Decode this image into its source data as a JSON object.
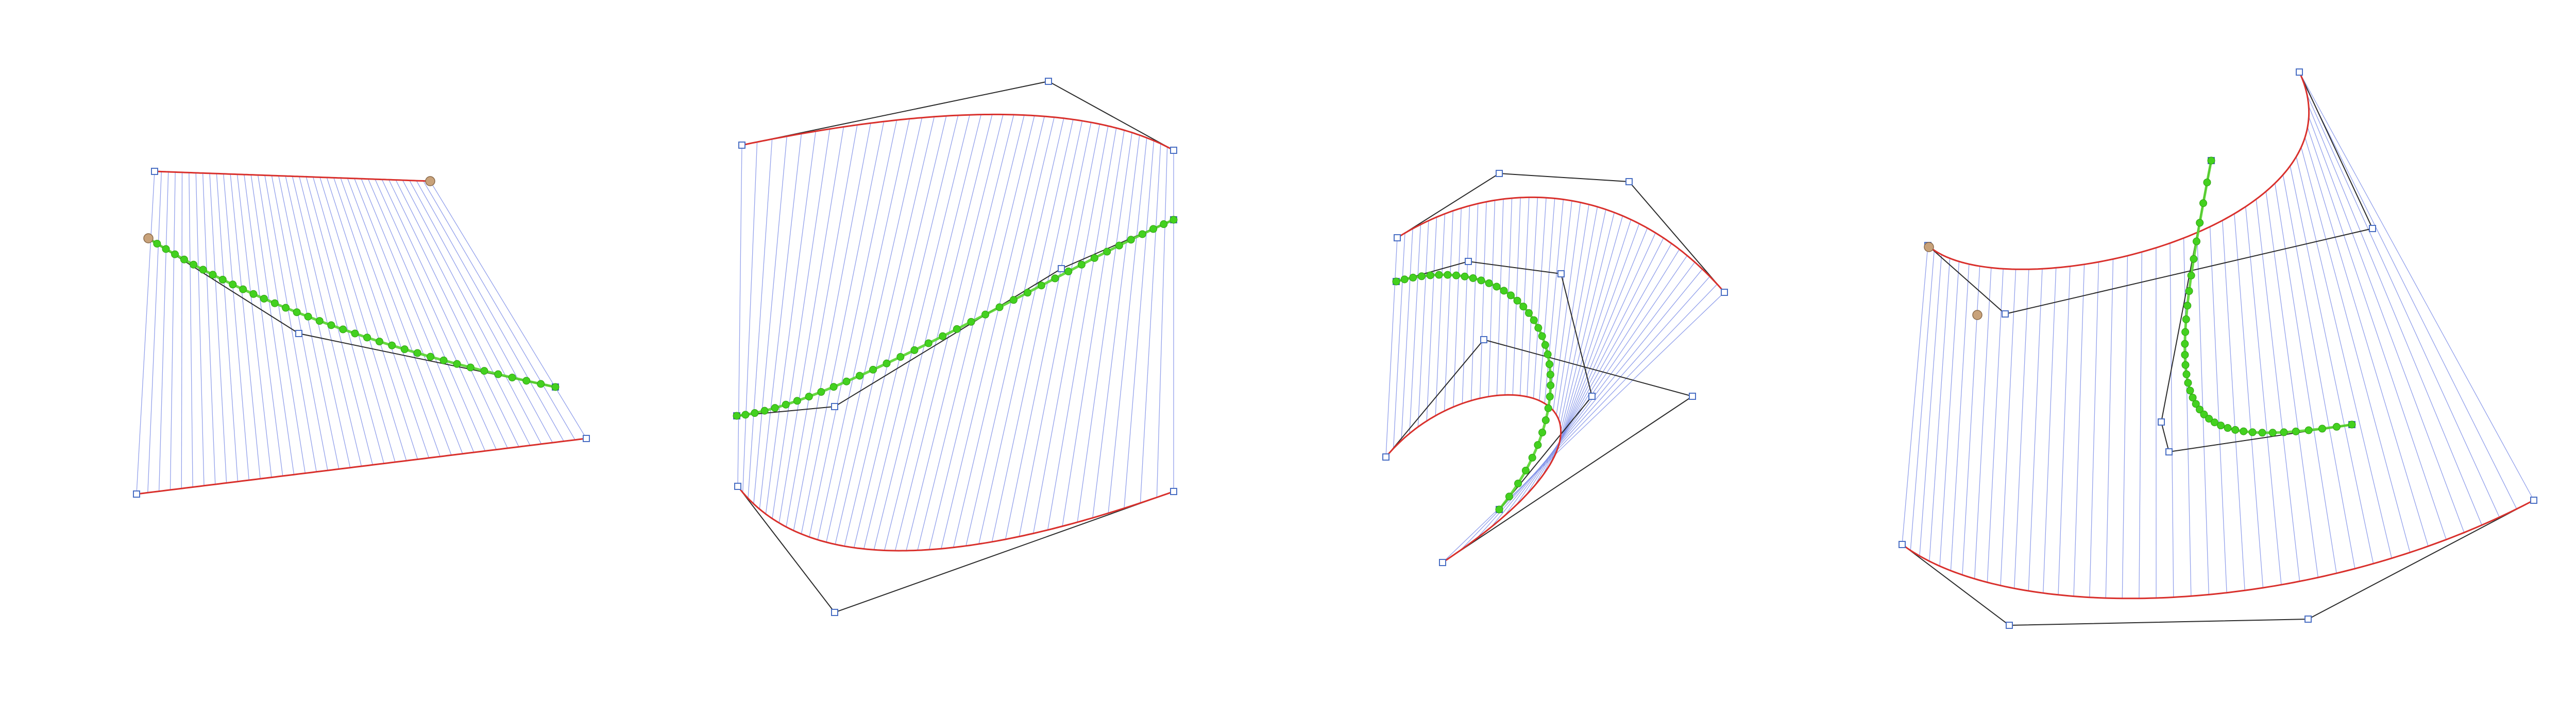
{
  "colors": {
    "background": "#ffffff",
    "boundary_curve": "#d9302c",
    "ruling_line": "#7f8fe8",
    "control_polygon": "#2b2b2b",
    "control_point": "#4a6fc4",
    "sample_curve": "#56d62e",
    "sample_point": "#43d11f",
    "handle_highlight": "#c8a27a"
  },
  "icons": {
    "control_point": "hollow-square-icon",
    "sample_point": "green-dot-icon",
    "handle": "tan-dot-icon"
  },
  "panels": [
    {
      "name": "ruled-surface-panel-1",
      "index": 1,
      "shape": "flat quad, straight boundary lines, near-straight green curve"
    },
    {
      "name": "ruled-surface-panel-2",
      "index": 2,
      "shape": "quadratic top and bottom boundaries, S-shaped green curve"
    },
    {
      "name": "ruled-surface-panel-3",
      "index": 3,
      "shape": "cubic arcs, hook-shaped green curve"
    },
    {
      "name": "ruled-surface-panel-4",
      "index": 4,
      "shape": "cubic boundaries, converging rulings, forked green curve"
    }
  ]
}
